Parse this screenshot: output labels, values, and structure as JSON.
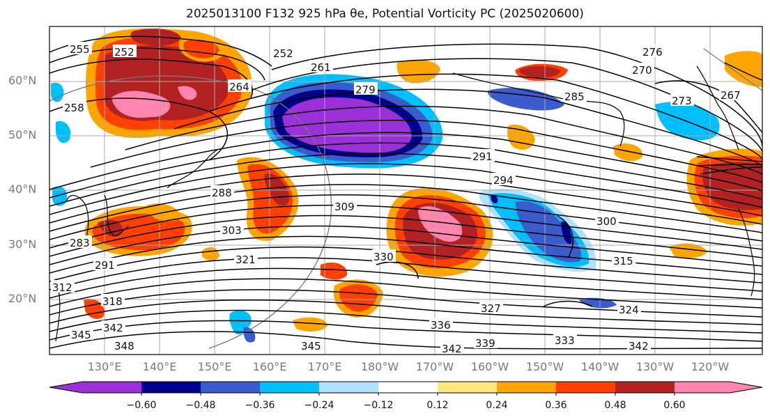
{
  "title": "2025013100 F132 925 hPa θe, Potential Vorticity PC (2025020600)",
  "map": {
    "lat_labels": [
      "60°N",
      "50°N",
      "40°N",
      "30°N",
      "20°N"
    ],
    "lon_labels": [
      "130°E",
      "140°E",
      "150°E",
      "160°E",
      "170°E",
      "180°W",
      "170°W",
      "160°W",
      "150°W",
      "140°W",
      "130°W",
      "120°W"
    ],
    "theta_e_contour_labels": [
      "255",
      "252",
      "252",
      "261",
      "264",
      "279",
      "258",
      "276",
      "270",
      "273",
      "267",
      "285",
      "291",
      "294",
      "288",
      "300",
      "303",
      "309",
      "321",
      "330",
      "315",
      "283",
      "291",
      "312",
      "318",
      "327",
      "324",
      "336",
      "333",
      "339",
      "342",
      "342",
      "342",
      "345",
      "345",
      "348"
    ]
  },
  "colorbar": {
    "tick_labels": [
      "−0.60",
      "−0.48",
      "−0.36",
      "−0.24",
      "−0.12",
      "0.12",
      "0.24",
      "0.36",
      "0.48",
      "0.60"
    ],
    "colors": [
      "#9b30d8",
      "#00008b",
      "#3a5ccc",
      "#00bfff",
      "#b0e2ff",
      "#ffffff",
      "#ffe680",
      "#ffa500",
      "#ff4000",
      "#b22222",
      "#ff85b0",
      "#ff85b0"
    ]
  }
}
